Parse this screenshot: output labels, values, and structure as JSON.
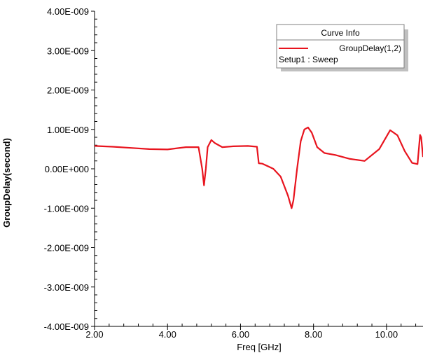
{
  "chart_data": {
    "type": "line",
    "xlabel": "Freq [GHz]",
    "ylabel": "GroupDelay(second)",
    "xlim": [
      2.0,
      11.0
    ],
    "ylim": [
      -4e-09,
      4e-09
    ],
    "x_ticks": [
      {
        "value": 2,
        "label": "2.00"
      },
      {
        "value": 4,
        "label": "4.00"
      },
      {
        "value": 6,
        "label": "6.00"
      },
      {
        "value": 8,
        "label": "8.00"
      },
      {
        "value": 10,
        "label": "10.00"
      }
    ],
    "y_ticks": [
      {
        "value": 4e-09,
        "label": "4.00E-009"
      },
      {
        "value": 3e-09,
        "label": "3.00E-009"
      },
      {
        "value": 2e-09,
        "label": "2.00E-009"
      },
      {
        "value": 1e-09,
        "label": "1.00E-009"
      },
      {
        "value": 0,
        "label": "0.00E+000"
      },
      {
        "value": -1e-09,
        "label": "-1.00E-009"
      },
      {
        "value": -2e-09,
        "label": "-2.00E-009"
      },
      {
        "value": -3e-09,
        "label": "-3.00E-009"
      },
      {
        "value": -4e-09,
        "label": "-4.00E-009"
      }
    ],
    "grid": false,
    "legend": {
      "title": "Curve Info",
      "placement": "top-right",
      "entries": [
        "GroupDelay(1,2)"
      ],
      "subtitle": "Setup1 : Sweep"
    },
    "series": [
      {
        "name": "GroupDelay(1,2)",
        "color": "#e8141e",
        "x": [
          2.0,
          2.5,
          3.0,
          3.5,
          4.0,
          4.5,
          4.85,
          4.95,
          5.0,
          5.05,
          5.1,
          5.2,
          5.3,
          5.5,
          5.8,
          6.2,
          6.45,
          6.5,
          6.6,
          6.9,
          7.1,
          7.3,
          7.4,
          7.45,
          7.55,
          7.65,
          7.75,
          7.85,
          7.95,
          8.1,
          8.3,
          8.6,
          9.0,
          9.4,
          9.8,
          10.1,
          10.3,
          10.5,
          10.7,
          10.85,
          10.92,
          10.95,
          11.0
        ],
        "y": [
          5.8e-10,
          5.6e-10,
          5.3e-10,
          5e-10,
          4.9e-10,
          5.5e-10,
          5.5e-10,
          0.0,
          -4.2e-10,
          0.0,
          5.5e-10,
          7.3e-10,
          6.5e-10,
          5.5e-10,
          5.7e-10,
          5.8e-10,
          5.6e-10,
          1.4e-10,
          1.3e-10,
          0.0,
          -2e-10,
          -6.8e-10,
          -1e-09,
          -8e-10,
          0.0,
          7e-10,
          1e-09,
          1.05e-09,
          9.2e-10,
          5.5e-10,
          4e-10,
          3.5e-10,
          2.5e-10,
          2e-10,
          5e-10,
          9.8e-10,
          8.5e-10,
          4.5e-10,
          1.5e-10,
          1.2e-10,
          8.6e-10,
          8e-10,
          3e-10
        ]
      }
    ]
  }
}
